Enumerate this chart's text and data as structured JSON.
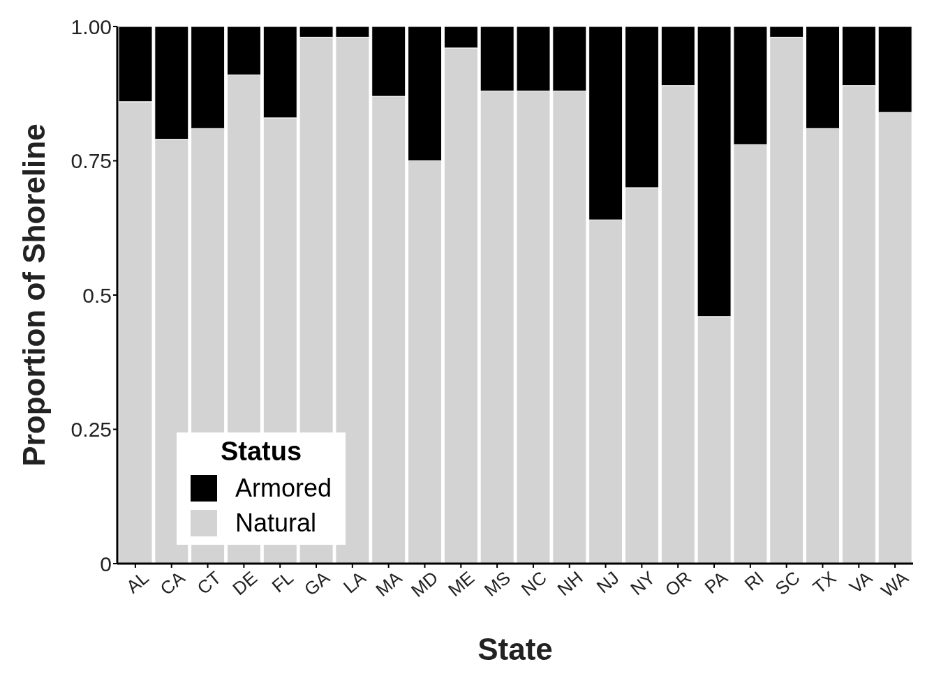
{
  "chart_data": {
    "type": "bar",
    "stacked": true,
    "xlabel": "State",
    "ylabel": "Proportion of Shoreline",
    "legend_title": "Status",
    "legend": "bottom left",
    "grid": false,
    "categories": [
      "AL",
      "CA",
      "CT",
      "DE",
      "FL",
      "GA",
      "LA",
      "MA",
      "MD",
      "ME",
      "MS",
      "NC",
      "NH",
      "NJ",
      "NY",
      "OR",
      "PA",
      "RI",
      "SC",
      "TX",
      "VA",
      "WA"
    ],
    "ylim": [
      0,
      1
    ],
    "yticks": [
      0,
      0.25,
      0.5,
      {
        "value": 0.75,
        "label": "0.75"
      },
      {
        "value": 1,
        "label": "1.00"
      }
    ],
    "series": [
      {
        "name": "Natural",
        "color": "#d3d3d3",
        "values": [
          0.86,
          0.79,
          0.81,
          0.91,
          0.83,
          0.98,
          0.98,
          0.87,
          0.75,
          0.96,
          0.88,
          0.88,
          0.88,
          0.64,
          0.7,
          0.89,
          0.46,
          0.78,
          0.98,
          0.81,
          0.89,
          0.84
        ]
      },
      {
        "name": "Armored",
        "color": "#000000",
        "values": [
          0.14,
          0.21,
          0.19,
          0.09,
          0.17,
          0.02,
          0.02,
          0.13,
          0.25,
          0.04,
          0.12,
          0.12,
          0.12,
          0.36,
          0.3,
          0.11,
          0.54,
          0.22,
          0.02,
          0.19,
          0.11,
          0.16
        ]
      }
    ]
  }
}
